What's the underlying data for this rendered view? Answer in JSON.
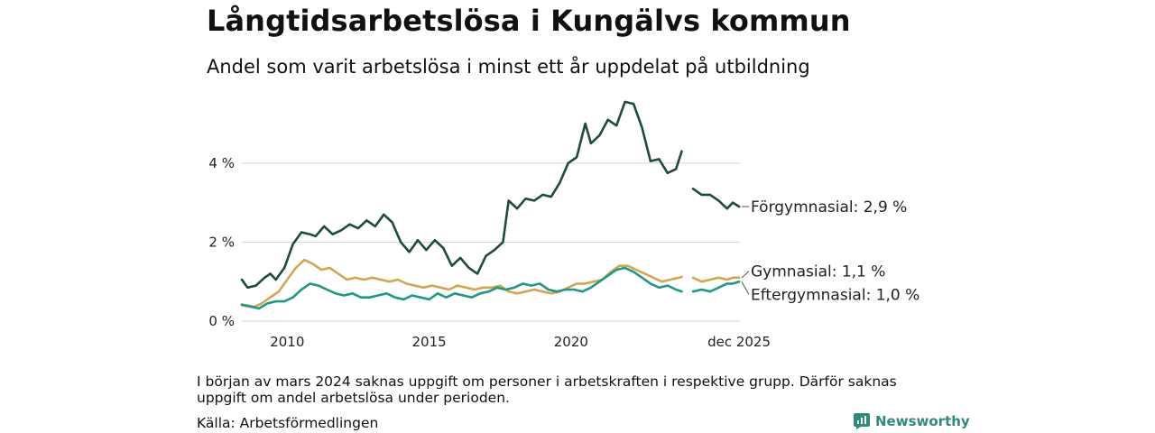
{
  "header": {
    "title": "Långtidsarbetslösa i Kungälvs kommun",
    "subtitle": "Andel som varit arbetslösa i minst ett år uppdelat på utbildning"
  },
  "footer": {
    "note": "I början av mars 2024 saknas uppgift om personer i arbetskraften i respektive grupp. Därför saknas uppgift om andel arbetslösa under perioden.",
    "source": "Källa: Arbetsförmedlingen",
    "brand": "Newsworthy"
  },
  "colors": {
    "forgymnasial": "#1f4a3f",
    "gymnasial": "#d4a650",
    "eftergymnasial": "#1c9a83",
    "grid": "#d9d9d9",
    "brand": "#2e8b7a"
  },
  "chart_data": {
    "type": "line",
    "title": "Långtidsarbetslösa i Kungälvs kommun",
    "subtitle": "Andel som varit arbetslösa i minst ett år uppdelat på utbildning",
    "xlabel": "",
    "ylabel": "",
    "unit": "%",
    "xlim": [
      2008.4,
      2025.95
    ],
    "ylim": [
      0,
      5.8
    ],
    "y_ticks": [
      0,
      2,
      4
    ],
    "y_tick_labels": [
      "0 %",
      "2 %",
      "4 %"
    ],
    "x_ticks": [
      2010,
      2015,
      2020,
      2025.92
    ],
    "x_tick_labels": [
      "2010",
      "2015",
      "2020",
      "dec 2025"
    ],
    "gap": [
      2024.0,
      2024.25
    ],
    "series": [
      {
        "name": "Förgymnasial",
        "end_label": "Förgymnasial: 2,9 %",
        "color": "#1f4a3f",
        "points": [
          [
            2008.4,
            1.05
          ],
          [
            2008.6,
            0.85
          ],
          [
            2008.9,
            0.9
          ],
          [
            2009.2,
            1.1
          ],
          [
            2009.4,
            1.2
          ],
          [
            2009.6,
            1.05
          ],
          [
            2009.9,
            1.35
          ],
          [
            2010.2,
            1.95
          ],
          [
            2010.5,
            2.25
          ],
          [
            2010.8,
            2.2
          ],
          [
            2011.0,
            2.15
          ],
          [
            2011.3,
            2.4
          ],
          [
            2011.6,
            2.2
          ],
          [
            2011.9,
            2.3
          ],
          [
            2012.2,
            2.45
          ],
          [
            2012.5,
            2.35
          ],
          [
            2012.8,
            2.55
          ],
          [
            2013.1,
            2.4
          ],
          [
            2013.4,
            2.7
          ],
          [
            2013.7,
            2.5
          ],
          [
            2014.0,
            2.0
          ],
          [
            2014.3,
            1.75
          ],
          [
            2014.6,
            2.05
          ],
          [
            2014.9,
            1.8
          ],
          [
            2015.2,
            2.05
          ],
          [
            2015.5,
            1.85
          ],
          [
            2015.8,
            1.4
          ],
          [
            2016.1,
            1.6
          ],
          [
            2016.4,
            1.35
          ],
          [
            2016.7,
            1.2
          ],
          [
            2017.0,
            1.65
          ],
          [
            2017.3,
            1.8
          ],
          [
            2017.6,
            2.0
          ],
          [
            2017.8,
            3.05
          ],
          [
            2018.1,
            2.85
          ],
          [
            2018.4,
            3.1
          ],
          [
            2018.7,
            3.05
          ],
          [
            2019.0,
            3.2
          ],
          [
            2019.3,
            3.15
          ],
          [
            2019.6,
            3.5
          ],
          [
            2019.9,
            4.0
          ],
          [
            2020.2,
            4.15
          ],
          [
            2020.5,
            5.0
          ],
          [
            2020.7,
            4.5
          ],
          [
            2021.0,
            4.7
          ],
          [
            2021.3,
            5.1
          ],
          [
            2021.6,
            4.95
          ],
          [
            2021.9,
            5.55
          ],
          [
            2022.2,
            5.5
          ],
          [
            2022.5,
            4.9
          ],
          [
            2022.8,
            4.05
          ],
          [
            2023.1,
            4.1
          ],
          [
            2023.4,
            3.75
          ],
          [
            2023.7,
            3.85
          ],
          [
            2023.9,
            4.3
          ],
          [
            null,
            null
          ],
          [
            2024.3,
            3.35
          ],
          [
            2024.6,
            3.2
          ],
          [
            2024.9,
            3.2
          ],
          [
            2025.2,
            3.05
          ],
          [
            2025.5,
            2.85
          ],
          [
            2025.7,
            3.0
          ],
          [
            2025.92,
            2.9
          ]
        ]
      },
      {
        "name": "Gymnasial",
        "end_label": "Gymnasial: 1,1 %",
        "color": "#d4a650",
        "points": [
          [
            2008.4,
            0.4
          ],
          [
            2008.8,
            0.35
          ],
          [
            2009.1,
            0.45
          ],
          [
            2009.4,
            0.6
          ],
          [
            2009.7,
            0.75
          ],
          [
            2010.0,
            1.05
          ],
          [
            2010.3,
            1.35
          ],
          [
            2010.6,
            1.55
          ],
          [
            2010.9,
            1.45
          ],
          [
            2011.2,
            1.3
          ],
          [
            2011.5,
            1.35
          ],
          [
            2011.8,
            1.2
          ],
          [
            2012.1,
            1.05
          ],
          [
            2012.4,
            1.1
          ],
          [
            2012.7,
            1.05
          ],
          [
            2013.0,
            1.1
          ],
          [
            2013.3,
            1.05
          ],
          [
            2013.6,
            1.0
          ],
          [
            2013.9,
            1.05
          ],
          [
            2014.2,
            0.95
          ],
          [
            2014.5,
            0.9
          ],
          [
            2014.8,
            0.85
          ],
          [
            2015.1,
            0.9
          ],
          [
            2015.4,
            0.85
          ],
          [
            2015.7,
            0.8
          ],
          [
            2016.0,
            0.9
          ],
          [
            2016.3,
            0.85
          ],
          [
            2016.6,
            0.8
          ],
          [
            2016.9,
            0.85
          ],
          [
            2017.2,
            0.85
          ],
          [
            2017.5,
            0.9
          ],
          [
            2017.8,
            0.75
          ],
          [
            2018.1,
            0.7
          ],
          [
            2018.4,
            0.75
          ],
          [
            2018.7,
            0.8
          ],
          [
            2019.0,
            0.75
          ],
          [
            2019.3,
            0.7
          ],
          [
            2019.6,
            0.75
          ],
          [
            2019.9,
            0.85
          ],
          [
            2020.2,
            0.95
          ],
          [
            2020.5,
            0.95
          ],
          [
            2020.8,
            1.0
          ],
          [
            2021.1,
            1.05
          ],
          [
            2021.4,
            1.25
          ],
          [
            2021.7,
            1.4
          ],
          [
            2022.0,
            1.4
          ],
          [
            2022.3,
            1.3
          ],
          [
            2022.6,
            1.2
          ],
          [
            2022.9,
            1.1
          ],
          [
            2023.2,
            1.0
          ],
          [
            2023.5,
            1.05
          ],
          [
            2023.8,
            1.1
          ],
          [
            2023.9,
            1.12
          ],
          [
            null,
            null
          ],
          [
            2024.3,
            1.1
          ],
          [
            2024.6,
            1.0
          ],
          [
            2024.9,
            1.05
          ],
          [
            2025.2,
            1.1
          ],
          [
            2025.5,
            1.05
          ],
          [
            2025.7,
            1.1
          ],
          [
            2025.92,
            1.1
          ]
        ]
      },
      {
        "name": "Eftergymnasial",
        "end_label": "Eftergymnasial: 1,0 %",
        "color": "#1c9a83",
        "points": [
          [
            2008.4,
            0.42
          ],
          [
            2008.7,
            0.38
          ],
          [
            2009.0,
            0.32
          ],
          [
            2009.3,
            0.45
          ],
          [
            2009.6,
            0.5
          ],
          [
            2009.9,
            0.5
          ],
          [
            2010.2,
            0.6
          ],
          [
            2010.5,
            0.8
          ],
          [
            2010.8,
            0.95
          ],
          [
            2011.1,
            0.9
          ],
          [
            2011.4,
            0.8
          ],
          [
            2011.7,
            0.7
          ],
          [
            2012.0,
            0.65
          ],
          [
            2012.3,
            0.7
          ],
          [
            2012.6,
            0.6
          ],
          [
            2012.9,
            0.6
          ],
          [
            2013.2,
            0.65
          ],
          [
            2013.5,
            0.7
          ],
          [
            2013.8,
            0.6
          ],
          [
            2014.1,
            0.55
          ],
          [
            2014.4,
            0.65
          ],
          [
            2014.7,
            0.6
          ],
          [
            2015.0,
            0.55
          ],
          [
            2015.3,
            0.7
          ],
          [
            2015.6,
            0.6
          ],
          [
            2015.9,
            0.7
          ],
          [
            2016.2,
            0.65
          ],
          [
            2016.5,
            0.6
          ],
          [
            2016.8,
            0.7
          ],
          [
            2017.1,
            0.75
          ],
          [
            2017.4,
            0.85
          ],
          [
            2017.7,
            0.8
          ],
          [
            2018.0,
            0.85
          ],
          [
            2018.3,
            0.95
          ],
          [
            2018.6,
            0.9
          ],
          [
            2018.9,
            0.95
          ],
          [
            2019.2,
            0.8
          ],
          [
            2019.5,
            0.75
          ],
          [
            2019.8,
            0.8
          ],
          [
            2020.1,
            0.8
          ],
          [
            2020.4,
            0.75
          ],
          [
            2020.7,
            0.85
          ],
          [
            2021.0,
            1.0
          ],
          [
            2021.3,
            1.15
          ],
          [
            2021.6,
            1.3
          ],
          [
            2021.9,
            1.35
          ],
          [
            2022.2,
            1.25
          ],
          [
            2022.5,
            1.1
          ],
          [
            2022.8,
            0.95
          ],
          [
            2023.1,
            0.85
          ],
          [
            2023.4,
            0.9
          ],
          [
            2023.7,
            0.8
          ],
          [
            2023.9,
            0.75
          ],
          [
            null,
            null
          ],
          [
            2024.3,
            0.75
          ],
          [
            2024.6,
            0.8
          ],
          [
            2024.9,
            0.75
          ],
          [
            2025.2,
            0.85
          ],
          [
            2025.5,
            0.95
          ],
          [
            2025.7,
            0.95
          ],
          [
            2025.92,
            1.0
          ]
        ]
      }
    ]
  }
}
